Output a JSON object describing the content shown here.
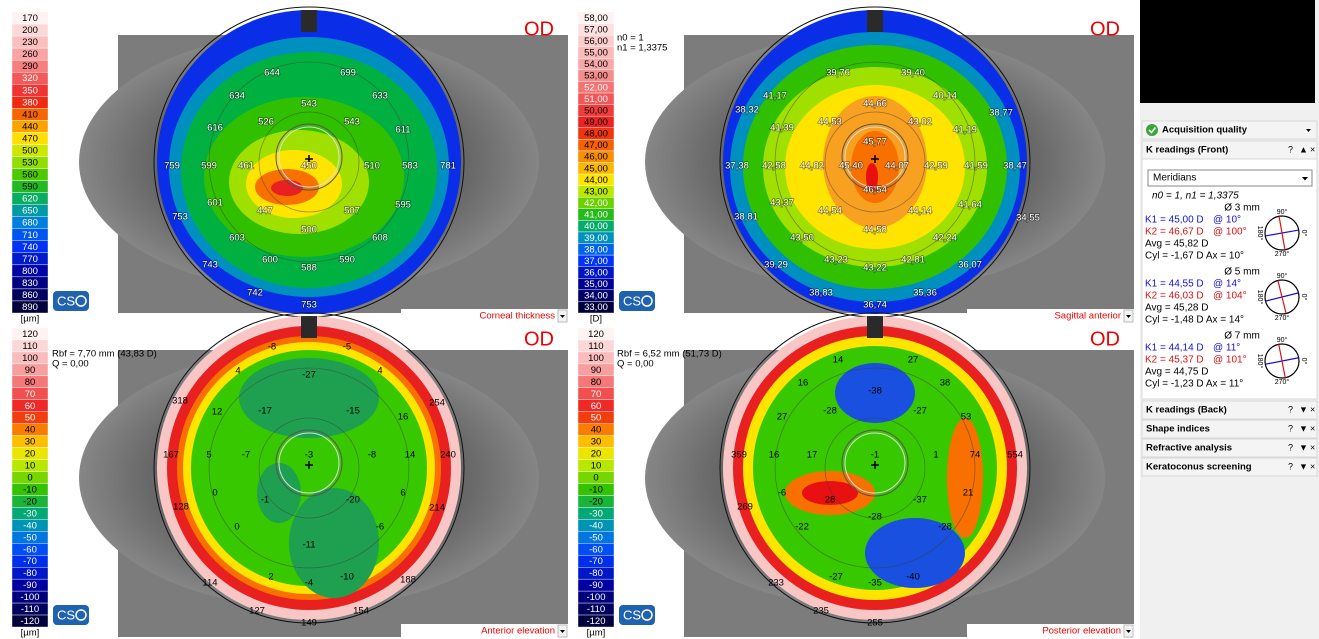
{
  "panels": [
    {
      "eye": "OD",
      "label": "Corneal thickness",
      "unit": "[µm]",
      "info": [],
      "scale": [
        "170",
        "200",
        "230",
        "260",
        "290",
        "320",
        "350",
        "380",
        "410",
        "440",
        "470",
        "500",
        "530",
        "560",
        "590",
        "620",
        "650",
        "680",
        "710",
        "740",
        "770",
        "800",
        "830",
        "860",
        "890"
      ],
      "values": [
        "644",
        "699",
        "634",
        "633",
        "543",
        "526",
        "543",
        "616",
        "611",
        "759",
        "599",
        "461",
        "450",
        "510",
        "583",
        "781",
        "601",
        "447",
        "507",
        "595",
        "753",
        "500",
        "603",
        "608",
        "600",
        "588",
        "590",
        "743",
        "742",
        "753"
      ]
    },
    {
      "eye": "OD",
      "label": "Sagittal anterior",
      "unit": "[D]",
      "info": [
        "n0 = 1",
        "n1 = 1,3375"
      ],
      "scale": [
        "58,00",
        "57,00",
        "56,00",
        "55,00",
        "54,00",
        "53,00",
        "52,00",
        "51,00",
        "50,00",
        "49,00",
        "48,00",
        "47,00",
        "46,00",
        "45,00",
        "44,00",
        "43,00",
        "42,00",
        "41,00",
        "40,00",
        "39,00",
        "38,00",
        "37,00",
        "36,00",
        "35,00",
        "34,00",
        "33,00"
      ],
      "values": [
        "39,76",
        "39,40",
        "41,17",
        "40,14",
        "38,32",
        "38,77",
        "44,66",
        "44,53",
        "43,02",
        "41,39",
        "41,19",
        "45,77",
        "37,38",
        "42,58",
        "44,82",
        "45,40",
        "44,07",
        "42,59",
        "41,59",
        "38,47",
        "46,54",
        "43,37",
        "44,54",
        "44,14",
        "41,64",
        "38,81",
        "44,58",
        "43,50",
        "42,24",
        "34,55",
        "39,29",
        "43,23",
        "43,22",
        "42,81",
        "36,07",
        "38,83",
        "36,74",
        "35,36"
      ]
    },
    {
      "eye": "OD",
      "label": "Anterior elevation",
      "unit": "[µm]",
      "info": [
        "Rbf = 7,70 mm (43,83 D)",
        "Q = 0,00"
      ],
      "scale": [
        "120",
        "110",
        "100",
        "90",
        "80",
        "70",
        "60",
        "50",
        "40",
        "30",
        "20",
        "10",
        "0",
        "-10",
        "-20",
        "-30",
        "-40",
        "-50",
        "-60",
        "-70",
        "-80",
        "-90",
        "-100",
        "-110",
        "-120"
      ],
      "values": [
        "-8",
        "-5",
        "4",
        "4",
        "-27",
        "318",
        "12",
        "-17",
        "-15",
        "16",
        "254",
        "167",
        "5",
        "-7",
        "-3",
        "-8",
        "14",
        "240",
        "0",
        "-1",
        "-20",
        "6",
        "128",
        "214",
        "0",
        "-11",
        "-6",
        "2",
        "-4",
        "-10",
        "114",
        "188",
        "127",
        "154",
        "149"
      ]
    },
    {
      "eye": "OD",
      "label": "Posterior elevation",
      "unit": "[µm]",
      "info": [
        "Rbf = 6,52 mm (51,73 D)",
        "Q = 0,00"
      ],
      "scale": [
        "120",
        "110",
        "100",
        "90",
        "80",
        "70",
        "60",
        "50",
        "40",
        "30",
        "20",
        "10",
        "0",
        "-10",
        "-20",
        "-30",
        "-40",
        "-50",
        "-60",
        "-70",
        "-80",
        "-90",
        "-100",
        "-110",
        "-120"
      ],
      "values": [
        "14",
        "27",
        "16",
        "38",
        "-38",
        "-28",
        "-27",
        "27",
        "53",
        "359",
        "16",
        "17",
        "-1",
        "1",
        "74",
        "554",
        "-6",
        "28",
        "-37",
        "21",
        "-28",
        "269",
        "-22",
        "-28",
        "-27",
        "-35",
        "-40",
        "233",
        "235",
        "255"
      ]
    }
  ],
  "logo": "CS",
  "sidebar": {
    "acquisition": "Acquisition quality",
    "k_front": {
      "title": "K readings (Front)",
      "mode": "Meridians",
      "indices": "n0 = 1, n1 = 1,3375",
      "zones": [
        {
          "diameter": "Ø 3 mm",
          "k1": "K1 = 45,00 D",
          "k1_axis": "@ 10°",
          "k2": "K2 = 46,67 D",
          "k2_axis": "@ 100°",
          "avg": "Avg = 45,82 D",
          "cyl": "Cyl = -1,67 D Ax = 10°"
        },
        {
          "diameter": "Ø 5 mm",
          "k1": "K1 = 44,55 D",
          "k1_axis": "@ 14°",
          "k2": "K2 = 46,03 D",
          "k2_axis": "@ 104°",
          "avg": "Avg = 45,28 D",
          "cyl": "Cyl = -1,48 D Ax = 14°"
        },
        {
          "diameter": "Ø 7 mm",
          "k1": "K1 = 44,14 D",
          "k1_axis": "@ 11°",
          "k2": "K2 = 45,37 D",
          "k2_axis": "@ 101°",
          "avg": "Avg = 44,75 D",
          "cyl": "Cyl = -1,23 D Ax = 11°"
        }
      ]
    },
    "axis_labels": [
      "90°",
      "0°",
      "180°",
      "270°"
    ],
    "collapsed": [
      "K readings (Back)",
      "Shape indices",
      "Refractive analysis",
      "Keratoconus screening"
    ],
    "buttons": [
      "?",
      "▲",
      "▼",
      "×"
    ]
  }
}
